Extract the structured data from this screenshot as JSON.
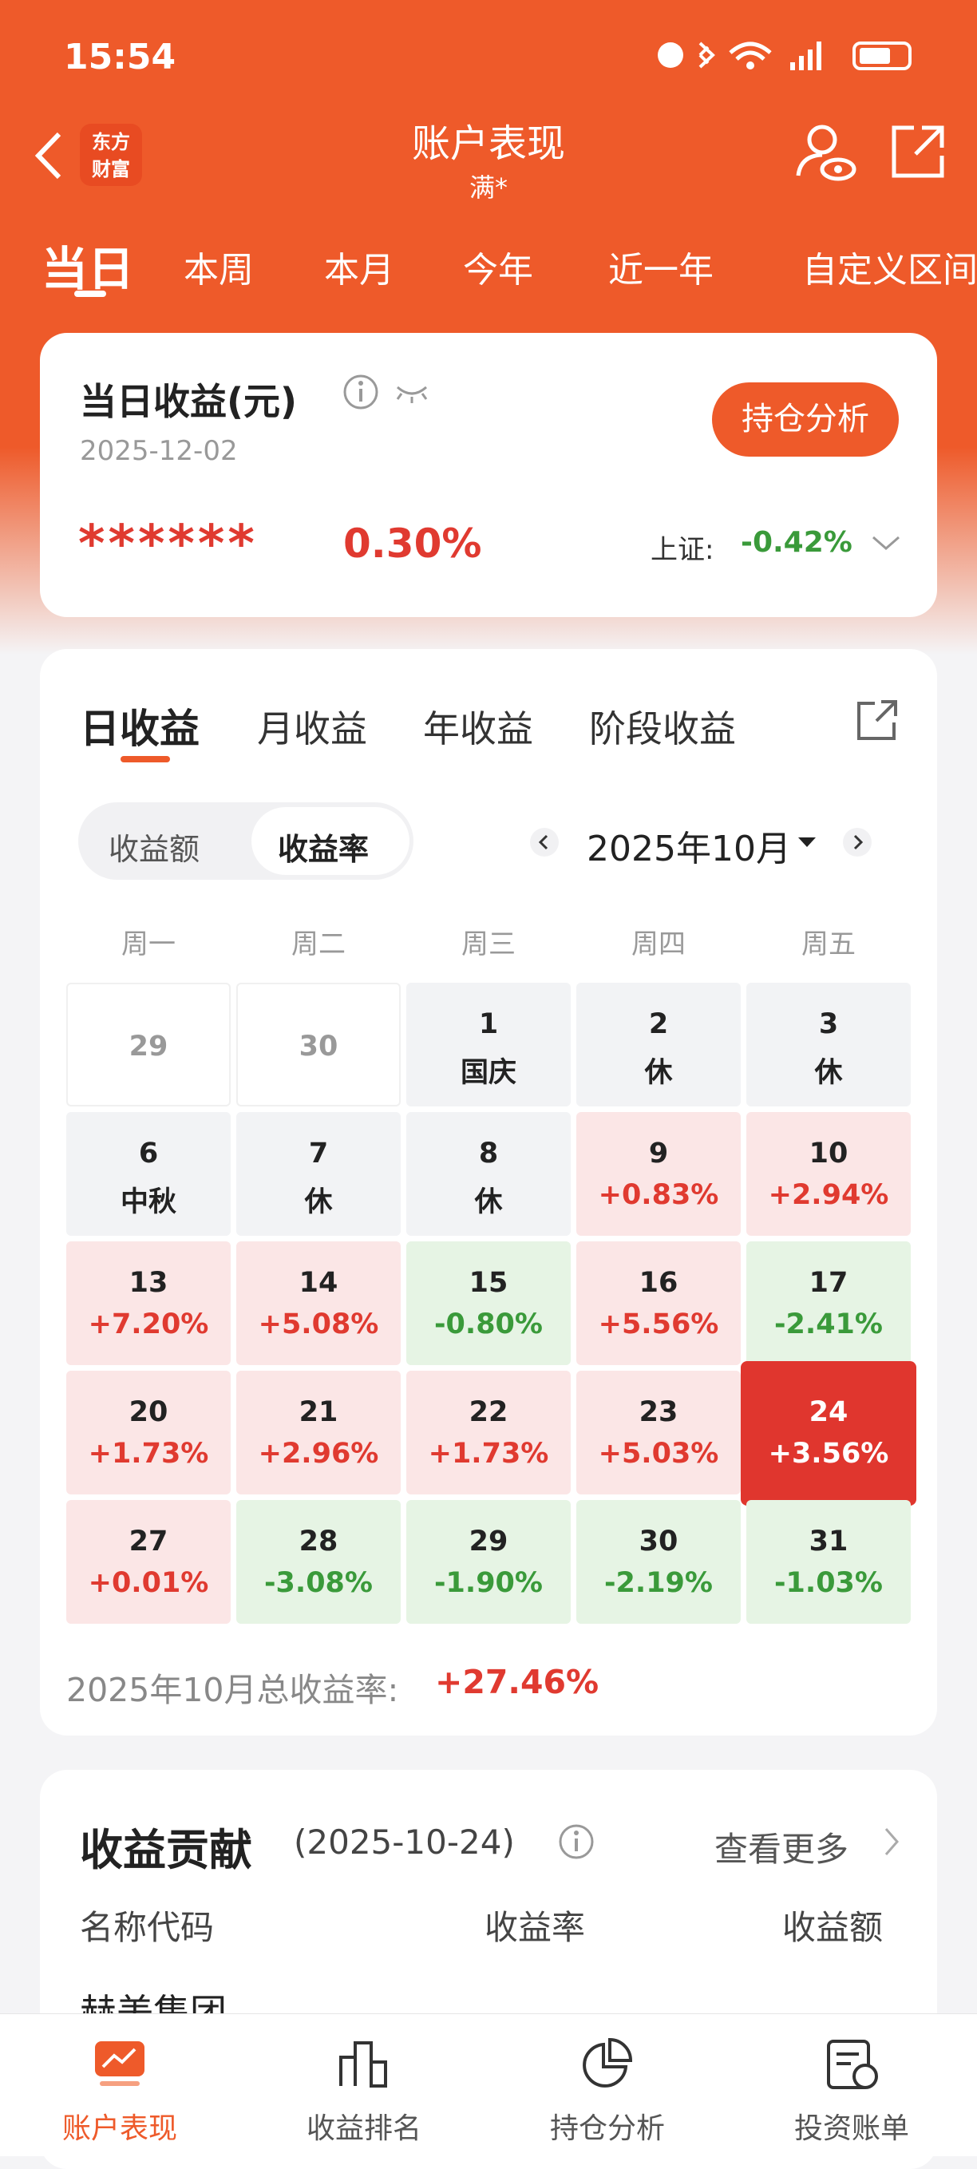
{
  "status": {
    "time": "15:54"
  },
  "header": {
    "logo": [
      "东方",
      "财富"
    ],
    "title": "账户表现",
    "subtitle": "满*"
  },
  "tabs": [
    "当日",
    "本周",
    "本月",
    "今年",
    "近一年",
    "自定义区间"
  ],
  "summary": {
    "title": "当日收益(元)",
    "date": "2025-12-02",
    "masked": "******",
    "rate": "0.30%",
    "button": "持仓分析",
    "index_label": "上证:",
    "index_value": "-0.42%"
  },
  "calendar": {
    "tabs": [
      "日收益",
      "月收益",
      "年收益",
      "阶段收益"
    ],
    "toggle": [
      "收益额",
      "收益率"
    ],
    "month": "2025年10月",
    "weekdays": [
      "周一",
      "周二",
      "周三",
      "周四",
      "周五"
    ],
    "cells": [
      {
        "day": "29"
      },
      {
        "day": "30"
      },
      {
        "day": "1",
        "note": "国庆"
      },
      {
        "day": "2",
        "note": "休"
      },
      {
        "day": "3",
        "note": "休"
      },
      {
        "day": "6",
        "note": "中秋"
      },
      {
        "day": "7",
        "note": "休"
      },
      {
        "day": "8",
        "note": "休"
      },
      {
        "day": "9",
        "note": "+0.83%"
      },
      {
        "day": "10",
        "note": "+2.94%"
      },
      {
        "day": "13",
        "note": "+7.20%"
      },
      {
        "day": "14",
        "note": "+5.08%"
      },
      {
        "day": "15",
        "note": "-0.80%"
      },
      {
        "day": "16",
        "note": "+5.56%"
      },
      {
        "day": "17",
        "note": "-2.41%"
      },
      {
        "day": "20",
        "note": "+1.73%"
      },
      {
        "day": "21",
        "note": "+2.96%"
      },
      {
        "day": "22",
        "note": "+1.73%"
      },
      {
        "day": "23",
        "note": "+5.03%"
      },
      {
        "day": "24",
        "note": "+3.56%",
        "selected": true
      },
      {
        "day": "27",
        "note": "+0.01%"
      },
      {
        "day": "28",
        "note": "-3.08%"
      },
      {
        "day": "29",
        "note": "-1.90%"
      },
      {
        "day": "30",
        "note": "-2.19%"
      },
      {
        "day": "31",
        "note": "-1.03%"
      }
    ],
    "total_label": "2025年10月总收益率:",
    "total_value": "+27.46%"
  },
  "contribution": {
    "title": "收益贡献",
    "date": "(2025-10-24)",
    "more": "查看更多",
    "columns": [
      "名称代码",
      "收益率",
      "收益额"
    ],
    "rows": [
      "赫美集团"
    ]
  },
  "nav": [
    "账户表现",
    "收益排名",
    "持仓分析",
    "投资账单"
  ]
}
